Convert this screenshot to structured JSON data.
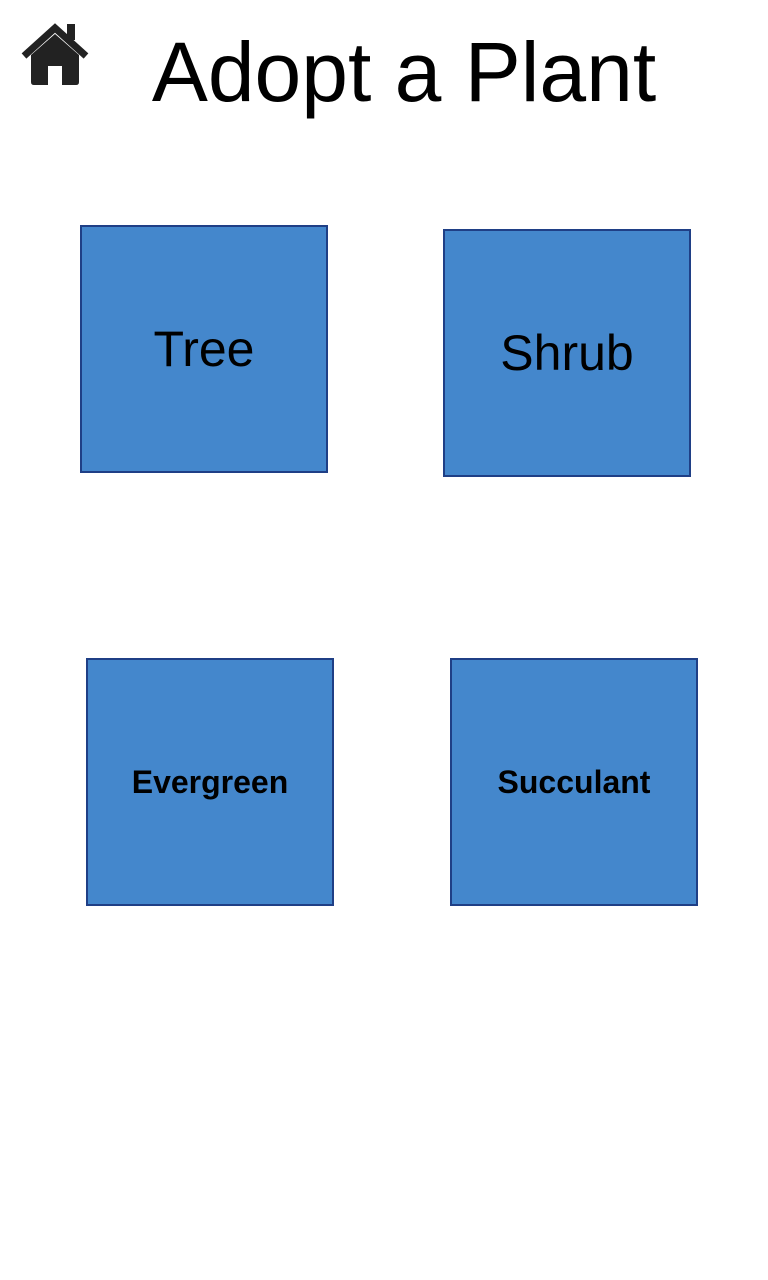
{
  "header": {
    "title": "Adopt a Plant",
    "home_icon": "home-icon"
  },
  "colors": {
    "tile_fill": "#4487cc",
    "tile_border": "#1f3f86",
    "icon": "#222222"
  },
  "tiles": [
    {
      "label": "Tree"
    },
    {
      "label": "Shrub"
    },
    {
      "label": "Evergreen"
    },
    {
      "label": "Succulant"
    }
  ]
}
